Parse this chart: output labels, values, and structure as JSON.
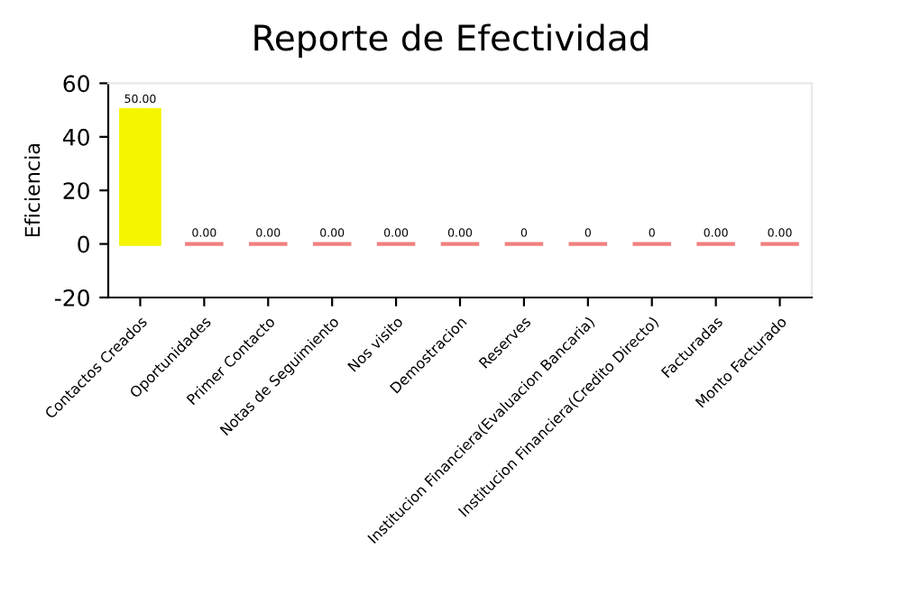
{
  "chart_data": {
    "type": "bar",
    "title": "Reporte de Efectividad",
    "ylabel": "Eficiencia",
    "categories": [
      "Contactos Creados",
      "Oportunidades",
      "Primer Contacto",
      "Notas de Seguimiento",
      "Nos visito",
      "Demostracion",
      "Reserves",
      "Institucion Financiera(Evaluacion Bancaria)",
      "Institucion Financiera(Credito Directo)",
      "Facturadas",
      "Monto Facturado"
    ],
    "values": [
      50,
      0,
      0,
      0,
      0,
      0,
      0,
      0,
      0,
      0,
      0
    ],
    "colors": [
      "#f5f500",
      "#f08080",
      "#f08080",
      "#f08080",
      "#f08080",
      "#f08080",
      "#f08080",
      "#f08080",
      "#f08080",
      "#f08080",
      "#f08080"
    ],
    "value_labels": [
      "50.00",
      "0.00",
      "0.00",
      "0.00",
      "0.00",
      "0.00",
      "0",
      "0",
      "0",
      "0.00",
      "0.00"
    ],
    "ylim": [
      -20,
      60
    ],
    "yticks": [
      -20,
      0,
      20,
      40,
      60
    ],
    "grid": false,
    "legend": false
  }
}
